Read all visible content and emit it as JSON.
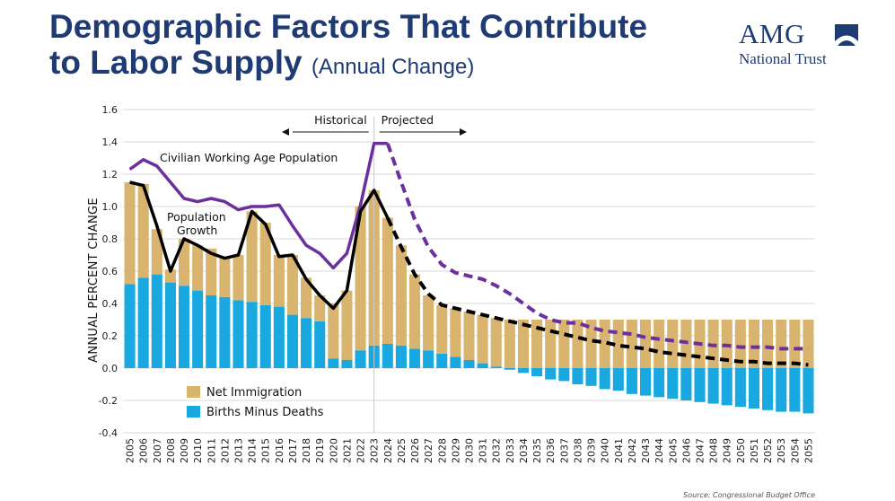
{
  "header": {
    "title_line1": "Demographic Factors That Contribute",
    "title_line2": "to Labor Supply",
    "subtitle": "(Annual Change)"
  },
  "logo": {
    "name": "AMG",
    "tagline": "National Trust"
  },
  "colors": {
    "net_immigration": "#d9b46e",
    "births_minus_deaths": "#19a8e0",
    "working_age_population": "#6b2f9e",
    "population_growth": "#000000",
    "grid": "#d8d8d8",
    "title": "#1f3b73"
  },
  "chart_data": {
    "type": "bar",
    "title": "Demographic Factors That Contribute to Labor Supply (Annual Change)",
    "ylabel": "ANNUAL PERCENT CHANGE",
    "xlabel": "",
    "ylim": [
      -0.4,
      1.6
    ],
    "yticks": [
      "1.6",
      "1.4",
      "1.2",
      "1.0",
      "0.8",
      "0.6",
      "0.4",
      "0.2",
      "0.0",
      "-0.2",
      "-0.4"
    ],
    "ytick_values": [
      1.6,
      1.4,
      1.2,
      1.0,
      0.8,
      0.6,
      0.4,
      0.2,
      0.0,
      -0.2,
      -0.4
    ],
    "grid": true,
    "categories": [
      "2005",
      "2006",
      "2007",
      "2008",
      "2009",
      "2010",
      "2011",
      "2012",
      "2013",
      "2014",
      "2015",
      "2016",
      "2017",
      "2018",
      "2019",
      "2020",
      "2021",
      "2022",
      "2023",
      "2024",
      "2025",
      "2026",
      "2027",
      "2028",
      "2029",
      "2030",
      "2031",
      "2032",
      "2033",
      "2034",
      "2035",
      "2036",
      "2037",
      "2038",
      "2039",
      "2040",
      "2041",
      "2042",
      "2043",
      "2044",
      "2045",
      "2046",
      "2047",
      "2048",
      "2049",
      "2050",
      "2051",
      "2052",
      "2053",
      "2054",
      "2055"
    ],
    "series": [
      {
        "name": "Births Minus Deaths",
        "kind": "bar",
        "values": [
          0.52,
          0.56,
          0.58,
          0.53,
          0.51,
          0.48,
          0.45,
          0.44,
          0.42,
          0.41,
          0.39,
          0.38,
          0.33,
          0.31,
          0.29,
          0.06,
          0.05,
          0.11,
          0.14,
          0.15,
          0.14,
          0.12,
          0.11,
          0.09,
          0.07,
          0.05,
          0.03,
          0.01,
          -0.01,
          -0.03,
          -0.05,
          -0.07,
          -0.08,
          -0.1,
          -0.11,
          -0.13,
          -0.14,
          -0.16,
          -0.17,
          -0.18,
          -0.19,
          -0.2,
          -0.21,
          -0.22,
          -0.23,
          -0.24,
          -0.25,
          -0.26,
          -0.27,
          -0.27,
          -0.28
        ]
      },
      {
        "name": "Net Immigration",
        "kind": "bar",
        "values": [
          0.63,
          0.58,
          0.28,
          0.08,
          0.29,
          0.28,
          0.29,
          0.25,
          0.28,
          0.56,
          0.51,
          0.32,
          0.37,
          0.25,
          0.16,
          0.34,
          0.43,
          0.89,
          0.96,
          0.78,
          0.62,
          0.46,
          0.34,
          0.3,
          0.3,
          0.3,
          0.3,
          0.3,
          0.3,
          0.3,
          0.3,
          0.3,
          0.3,
          0.3,
          0.3,
          0.3,
          0.3,
          0.3,
          0.3,
          0.3,
          0.3,
          0.3,
          0.3,
          0.3,
          0.3,
          0.3,
          0.3,
          0.3,
          0.3,
          0.3,
          0.3
        ]
      },
      {
        "name": "Civilian Working Age Population",
        "kind": "line",
        "historical": [
          1.23,
          1.29,
          1.25,
          1.15,
          1.05,
          1.03,
          1.05,
          1.03,
          0.98,
          1.0,
          1.0,
          1.01,
          0.88,
          0.76,
          0.71,
          0.62,
          0.71,
          1.01,
          1.39,
          1.39
        ],
        "projected": [
          1.39,
          1.15,
          0.92,
          0.75,
          0.64,
          0.59,
          0.57,
          0.55,
          0.51,
          0.46,
          0.4,
          0.34,
          0.3,
          0.28,
          0.28,
          0.25,
          0.23,
          0.22,
          0.21,
          0.19,
          0.18,
          0.17,
          0.16,
          0.15,
          0.14,
          0.14,
          0.13,
          0.13,
          0.13,
          0.12,
          0.12,
          0.12
        ]
      },
      {
        "name": "Population Growth",
        "kind": "line",
        "historical": [
          1.15,
          1.13,
          0.88,
          0.6,
          0.8,
          0.76,
          0.71,
          0.68,
          0.7,
          0.97,
          0.89,
          0.69,
          0.7,
          0.55,
          0.45,
          0.37,
          0.48,
          0.97,
          1.1,
          0.93
        ],
        "projected": [
          0.93,
          0.75,
          0.58,
          0.46,
          0.39,
          0.37,
          0.35,
          0.33,
          0.31,
          0.29,
          0.27,
          0.25,
          0.23,
          0.21,
          0.19,
          0.17,
          0.16,
          0.14,
          0.13,
          0.12,
          0.1,
          0.09,
          0.08,
          0.07,
          0.06,
          0.05,
          0.04,
          0.04,
          0.03,
          0.03,
          0.03,
          0.02
        ]
      }
    ],
    "annotations": {
      "historical": "Historical",
      "projected": "Projected",
      "working_age_label": "Civilian Working Age Population",
      "population_label_line1": "Population",
      "population_label_line2": "Growth"
    },
    "legend": [
      {
        "label": "Net Immigration",
        "series": "Net Immigration"
      },
      {
        "label": "Births Minus Deaths",
        "series": "Births Minus Deaths"
      }
    ],
    "legend_position": "bottom-left",
    "source": "Source: Congressional Budget Office"
  }
}
